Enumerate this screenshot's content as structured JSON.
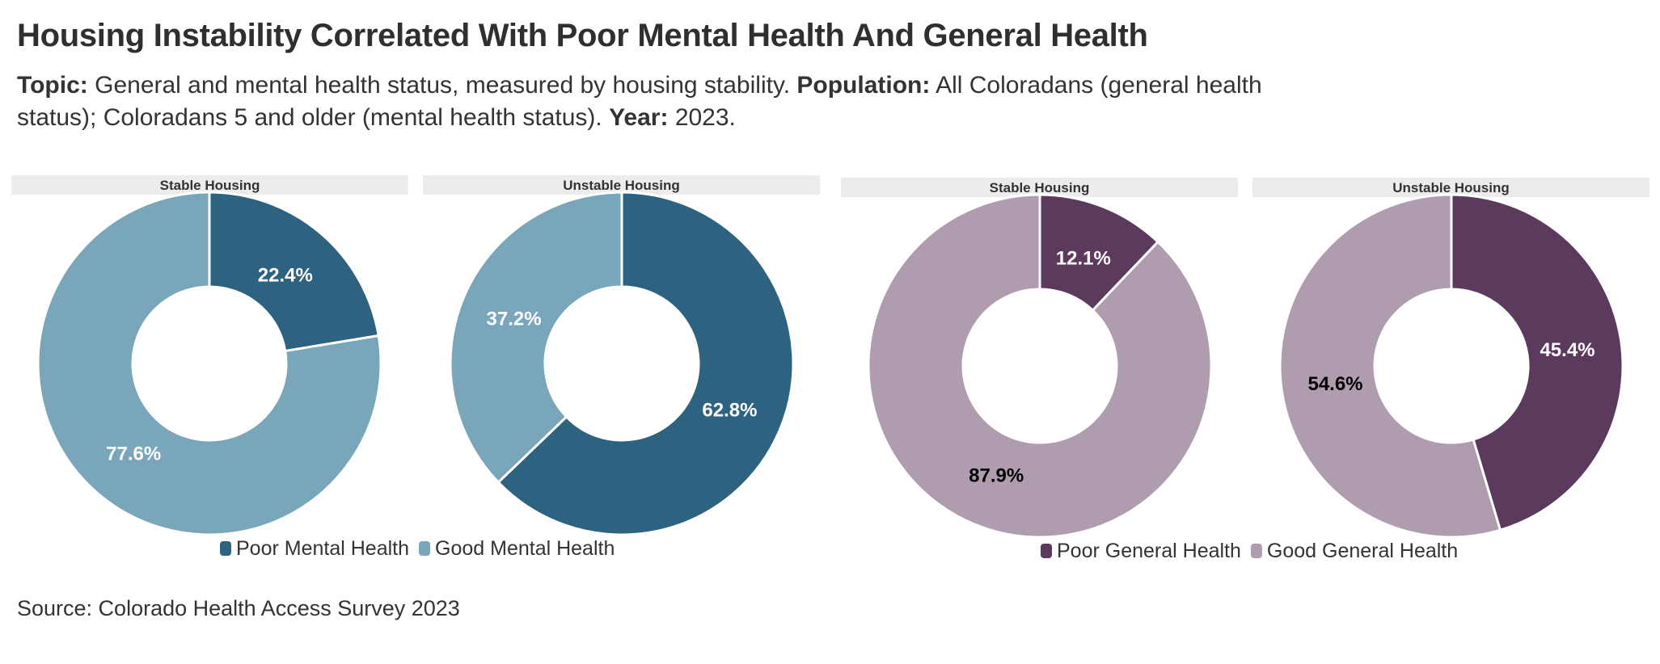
{
  "header": {
    "title": "Housing Instability Correlated With Poor Mental Health And General Health",
    "topic_label": "Topic:",
    "topic_text": "General and mental health status, measured by housing stability.",
    "population_label": "Population:",
    "population_text": "All Coloradans (general health status); Coloradans 5 and older (mental health status).",
    "year_label": "Year:",
    "year_text": "2023."
  },
  "footer": {
    "source": "Source: Colorado Health Access Survey 2023"
  },
  "chart_data": [
    {
      "type": "pie",
      "style": "donut",
      "panels": [
        {
          "label": "Stable Housing",
          "slices": [
            {
              "name": "Poor Mental Health",
              "value": 22.4,
              "label": "22.4%"
            },
            {
              "name": "Good Mental Health",
              "value": 77.6,
              "label": "77.6%"
            }
          ]
        },
        {
          "label": "Unstable Housing",
          "slices": [
            {
              "name": "Poor Mental Health",
              "value": 62.8,
              "label": "62.8%"
            },
            {
              "name": "Good Mental Health",
              "value": 37.2,
              "label": "37.2%"
            }
          ]
        }
      ],
      "legend": [
        {
          "name": "Poor Mental Health",
          "color": "#2d6380"
        },
        {
          "name": "Good Mental Health",
          "color": "#79a6ba"
        }
      ],
      "label_colors": [
        "#ffffff",
        "#ffffff"
      ]
    },
    {
      "type": "pie",
      "style": "donut",
      "panels": [
        {
          "label": "Stable Housing",
          "slices": [
            {
              "name": "Poor General Health",
              "value": 12.1,
              "label": "12.1%"
            },
            {
              "name": "Good General Health",
              "value": 87.9,
              "label": "87.9%"
            }
          ]
        },
        {
          "label": "Unstable Housing",
          "slices": [
            {
              "name": "Poor General Health",
              "value": 45.4,
              "label": "45.4%"
            },
            {
              "name": "Good General Health",
              "value": 54.6,
              "label": "54.6%"
            }
          ]
        }
      ],
      "legend": [
        {
          "name": "Poor General Health",
          "color": "#5c3a5e"
        },
        {
          "name": "Good General Health",
          "color": "#af9caf"
        }
      ],
      "label_colors": [
        "#ffffff",
        "#000000"
      ]
    }
  ]
}
